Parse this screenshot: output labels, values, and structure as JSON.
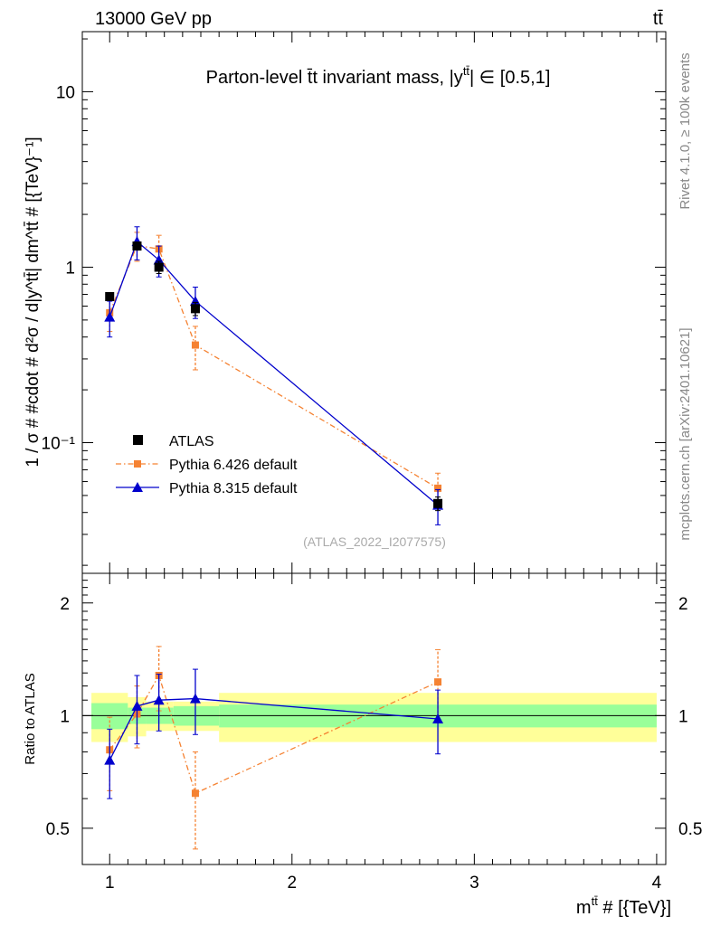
{
  "header": {
    "energy_label": "13000 GeV pp",
    "process_label": "tt̄"
  },
  "side_labels": {
    "rivet": "Rivet 4.1.0, ≥ 100k events",
    "mcplots": "mcplots.cern.ch [arXiv:2401.10621]"
  },
  "chart_data": {
    "type": "scatter",
    "title": "Parton-level t̄t invariant mass, |y",
    "title_sup": "tt̄",
    "title_tail": "| ∈ [0.5,1]",
    "watermark": "(ATLAS_2022_I2077575)",
    "xlabel": "m",
    "xlabel_sup": "tt̄",
    "xlabel_tail": " # [{TeV}]",
    "ylabel": "1 / σ # #cdot # d²σ / d|y^tt̄| dm^tt̄ # [{TeV}⁻¹]",
    "ratio_ylabel": "Ratio to ATLAS",
    "x_range": [
      0.85,
      4.05
    ],
    "y_range_log": [
      0.018,
      22
    ],
    "ratio_range": [
      0.4,
      2.4
    ],
    "x_ticks": [
      {
        "value": 1,
        "label": "1"
      },
      {
        "value": 2,
        "label": "2"
      },
      {
        "value": 3,
        "label": "3"
      },
      {
        "value": 4,
        "label": "4"
      }
    ],
    "y_ticks": [
      {
        "value": 10,
        "label": "10"
      },
      {
        "value": 1,
        "label": "1"
      },
      {
        "value": 0.1,
        "label": "10⁻¹"
      }
    ],
    "ratio_ticks": [
      {
        "value": 2,
        "label": "2"
      },
      {
        "value": 1,
        "label": "1"
      },
      {
        "value": 0.5,
        "label": "0.5"
      }
    ],
    "bins": [
      {
        "lo": 0.9,
        "hi": 1.1
      },
      {
        "lo": 1.1,
        "hi": 1.2
      },
      {
        "lo": 1.2,
        "hi": 1.35
      },
      {
        "lo": 1.35,
        "hi": 1.6
      },
      {
        "lo": 1.6,
        "hi": 4.0
      }
    ],
    "data_band": {
      "inner": [
        0.08,
        0.05,
        0.05,
        0.06,
        0.07
      ],
      "outer": [
        0.15,
        0.12,
        0.09,
        0.09,
        0.15
      ]
    },
    "series": [
      {
        "name": "ATLAS",
        "color": "#000000",
        "marker": "square",
        "x": [
          1.0,
          1.15,
          1.27,
          1.47,
          2.8
        ],
        "y": [
          0.68,
          1.32,
          1.0,
          0.58,
          0.045
        ],
        "yerr": [
          0.03,
          0.05,
          0.08,
          0.05,
          0.004
        ]
      },
      {
        "name": "Pythia 6.426 default",
        "color": "#f58232",
        "marker": "square",
        "dash": "dashdot",
        "x": [
          1.0,
          1.15,
          1.27,
          1.47,
          2.8
        ],
        "y": [
          0.55,
          1.33,
          1.27,
          0.36,
          0.055
        ],
        "yerr": [
          0.12,
          0.25,
          0.25,
          0.1,
          0.012
        ],
        "ratio": [
          0.81,
          1.01,
          1.28,
          0.62,
          1.23
        ],
        "ratio_err": [
          0.18,
          0.19,
          0.25,
          0.18,
          0.27
        ]
      },
      {
        "name": "Pythia 8.315 default",
        "color": "#0000cc",
        "marker": "triangle",
        "x": [
          1.0,
          1.15,
          1.27,
          1.47,
          2.8
        ],
        "y": [
          0.52,
          1.4,
          1.1,
          0.64,
          0.044
        ],
        "yerr": [
          0.12,
          0.3,
          0.22,
          0.13,
          0.01
        ],
        "ratio": [
          0.76,
          1.06,
          1.1,
          1.11,
          0.98
        ],
        "ratio_err": [
          0.16,
          0.22,
          0.19,
          0.22,
          0.19
        ]
      }
    ]
  }
}
